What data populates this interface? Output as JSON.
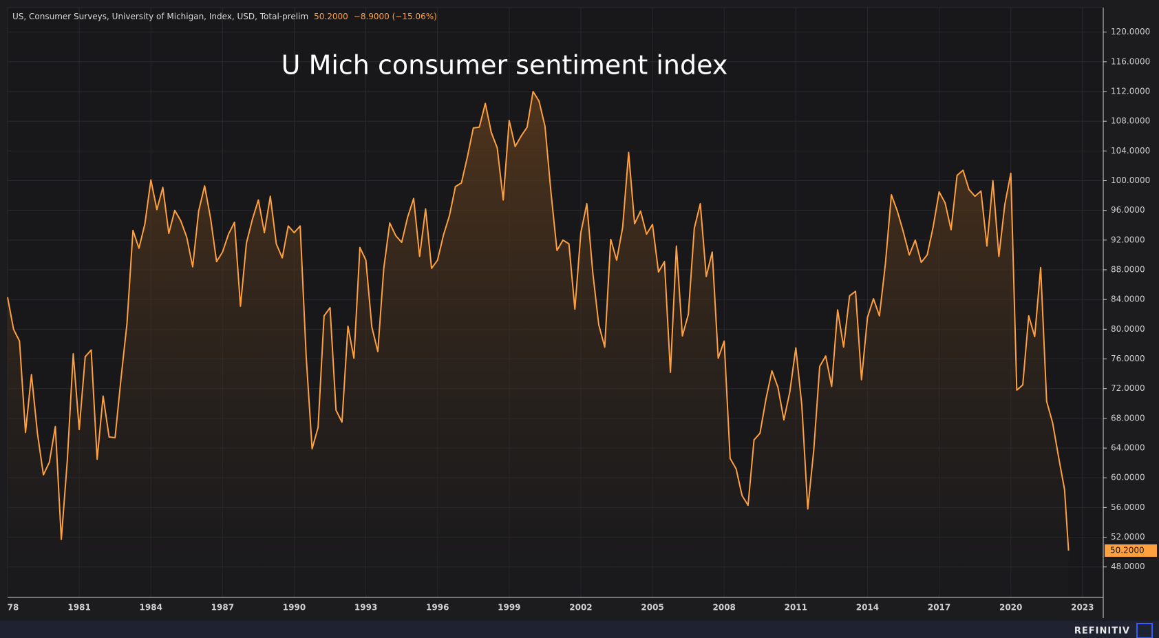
{
  "chart_data": {
    "type": "line",
    "title": "U Mich consumer sentiment index",
    "header": {
      "name": "US, Consumer Surveys, University of Michigan, Index, USD, Total-prelim",
      "last": "50.2000",
      "change": "−8.9000 (−15.06%)"
    },
    "footer": "REFINITIV",
    "xlim": [
      1978,
      2023.87
    ],
    "ylim": [
      43.9,
      123.3
    ],
    "xticks": [
      {
        "value": 1978,
        "label": "78"
      },
      1981,
      1984,
      1987,
      1990,
      1993,
      1996,
      1999,
      2002,
      2005,
      2008,
      2011,
      2014,
      2017,
      2020,
      2023
    ],
    "yticks": [
      {
        "value": 48,
        "label": "48.0000"
      },
      {
        "value": 52,
        "label": "52.0000"
      },
      {
        "value": 56,
        "label": "56.0000"
      },
      {
        "value": 60,
        "label": "60.0000"
      },
      {
        "value": 64,
        "label": "64.0000"
      },
      {
        "value": 68,
        "label": "68.0000"
      },
      {
        "value": 72,
        "label": "72.0000"
      },
      {
        "value": 76,
        "label": "76.0000"
      },
      {
        "value": 80,
        "label": "80.0000"
      },
      {
        "value": 84,
        "label": "84.0000"
      },
      {
        "value": 88,
        "label": "88.0000"
      },
      {
        "value": 92,
        "label": "92.0000"
      },
      {
        "value": 96,
        "label": "96.0000"
      },
      {
        "value": 100,
        "label": "100.0000"
      },
      {
        "value": 104,
        "label": "104.0000"
      },
      {
        "value": 108,
        "label": "108.0000"
      },
      {
        "value": 112,
        "label": "112.0000"
      },
      {
        "value": 116,
        "label": "116.0000"
      },
      {
        "value": 120,
        "label": "120.0000"
      }
    ],
    "grid": true,
    "x": [
      1978,
      1978.25,
      1978.5,
      1978.75,
      1979,
      1979.25,
      1979.5,
      1979.75,
      1980,
      1980.25,
      1980.5,
      1980.75,
      1981,
      1981.25,
      1981.5,
      1981.75,
      1982,
      1982.25,
      1982.5,
      1982.75,
      1983,
      1983.25,
      1983.5,
      1983.75,
      1984,
      1984.25,
      1984.5,
      1984.75,
      1985,
      1985.25,
      1985.5,
      1985.75,
      1986,
      1986.25,
      1986.5,
      1986.75,
      1987,
      1987.25,
      1987.5,
      1987.75,
      1988,
      1988.25,
      1988.5,
      1988.75,
      1989,
      1989.25,
      1989.5,
      1989.75,
      1990,
      1990.25,
      1990.5,
      1990.75,
      1991,
      1991.25,
      1991.5,
      1991.75,
      1992,
      1992.25,
      1992.5,
      1992.75,
      1993,
      1993.25,
      1993.5,
      1993.75,
      1994,
      1994.25,
      1994.5,
      1994.75,
      1995,
      1995.25,
      1995.5,
      1995.75,
      1996,
      1996.25,
      1996.5,
      1996.75,
      1997,
      1997.25,
      1997.5,
      1997.75,
      1998,
      1998.25,
      1998.5,
      1998.75,
      1999,
      1999.25,
      1999.5,
      1999.75,
      2000,
      2000.25,
      2000.5,
      2000.75,
      2001,
      2001.25,
      2001.5,
      2001.75,
      2002,
      2002.25,
      2002.5,
      2002.75,
      2003,
      2003.25,
      2003.5,
      2003.75,
      2004,
      2004.25,
      2004.5,
      2004.75,
      2005,
      2005.25,
      2005.5,
      2005.75,
      2006,
      2006.25,
      2006.5,
      2006.75,
      2007,
      2007.25,
      2007.5,
      2007.75,
      2008,
      2008.25,
      2008.5,
      2008.75,
      2009,
      2009.25,
      2009.5,
      2009.75,
      2010,
      2010.25,
      2010.5,
      2010.75,
      2011,
      2011.25,
      2011.5,
      2011.75,
      2012,
      2012.25,
      2012.5,
      2012.75,
      2013,
      2013.25,
      2013.5,
      2013.75,
      2014,
      2014.25,
      2014.5,
      2014.75,
      2015,
      2015.25,
      2015.5,
      2015.75,
      2016,
      2016.25,
      2016.5,
      2016.75,
      2017,
      2017.25,
      2017.5,
      2017.75,
      2018,
      2018.25,
      2018.5,
      2018.75,
      2019,
      2019.25,
      2019.5,
      2019.75,
      2020,
      2020.25,
      2020.5,
      2020.75,
      2021,
      2021.25,
      2021.5,
      2021.75,
      2022,
      2022.25,
      2022.417
    ],
    "series": [
      {
        "name": "US, Consumer Surveys, University of Michigan, Index, USD, Total-prelim",
        "color": "#ffa040",
        "values": [
          84.3,
          80.0,
          78.4,
          66.1,
          73.9,
          66.0,
          60.4,
          62.1,
          66.9,
          51.7,
          62.3,
          76.7,
          66.5,
          76.3,
          77.2,
          62.5,
          71.0,
          65.5,
          65.4,
          73.4,
          80.8,
          93.3,
          90.9,
          94.2,
          100.1,
          96.1,
          99.1,
          92.9,
          96.0,
          94.6,
          92.4,
          88.4,
          95.9,
          99.3,
          94.9,
          89.1,
          90.4,
          92.8,
          94.4,
          83.1,
          91.6,
          94.8,
          97.4,
          93.0,
          97.9,
          91.5,
          89.6,
          93.9,
          93.0,
          93.9,
          76.4,
          63.9,
          66.8,
          81.8,
          82.9,
          69.1,
          67.5,
          80.4,
          76.1,
          91.0,
          89.3,
          80.3,
          77.0,
          88.2,
          94.3,
          92.6,
          91.7,
          95.1,
          97.6,
          89.8,
          96.2,
          88.2,
          89.3,
          92.7,
          95.3,
          99.2,
          99.7,
          103.2,
          107.1,
          107.2,
          110.4,
          106.5,
          104.4,
          97.4,
          108.1,
          104.6,
          106.0,
          107.2,
          112.0,
          110.7,
          107.3,
          98.4,
          90.6,
          92.0,
          91.5,
          82.7,
          93.0,
          96.9,
          87.6,
          80.6,
          77.6,
          92.1,
          89.3,
          93.7,
          103.8,
          94.2,
          95.9,
          92.8,
          94.1,
          87.7,
          89.1,
          74.2,
          91.2,
          79.1,
          82.0,
          93.6,
          96.9,
          87.1,
          90.4,
          76.1,
          78.4,
          62.6,
          61.2,
          57.6,
          56.3,
          65.1,
          66.0,
          70.6,
          74.4,
          72.2,
          67.8,
          71.6,
          77.5,
          69.8,
          55.8,
          63.7,
          75.0,
          76.4,
          72.3,
          82.6,
          77.6,
          84.5,
          85.1,
          73.2,
          81.6,
          84.1,
          81.8,
          88.8,
          98.1,
          95.9,
          93.1,
          90.0,
          92.0,
          89.0,
          90.0,
          93.8,
          98.5,
          97.0,
          93.4,
          100.7,
          101.4,
          98.8,
          97.9,
          98.6,
          91.2,
          100.0,
          89.8,
          96.8,
          101.0,
          71.8,
          72.5,
          81.8,
          79.0,
          88.3,
          70.3,
          67.4,
          62.8,
          58.4,
          50.2
        ]
      }
    ]
  }
}
